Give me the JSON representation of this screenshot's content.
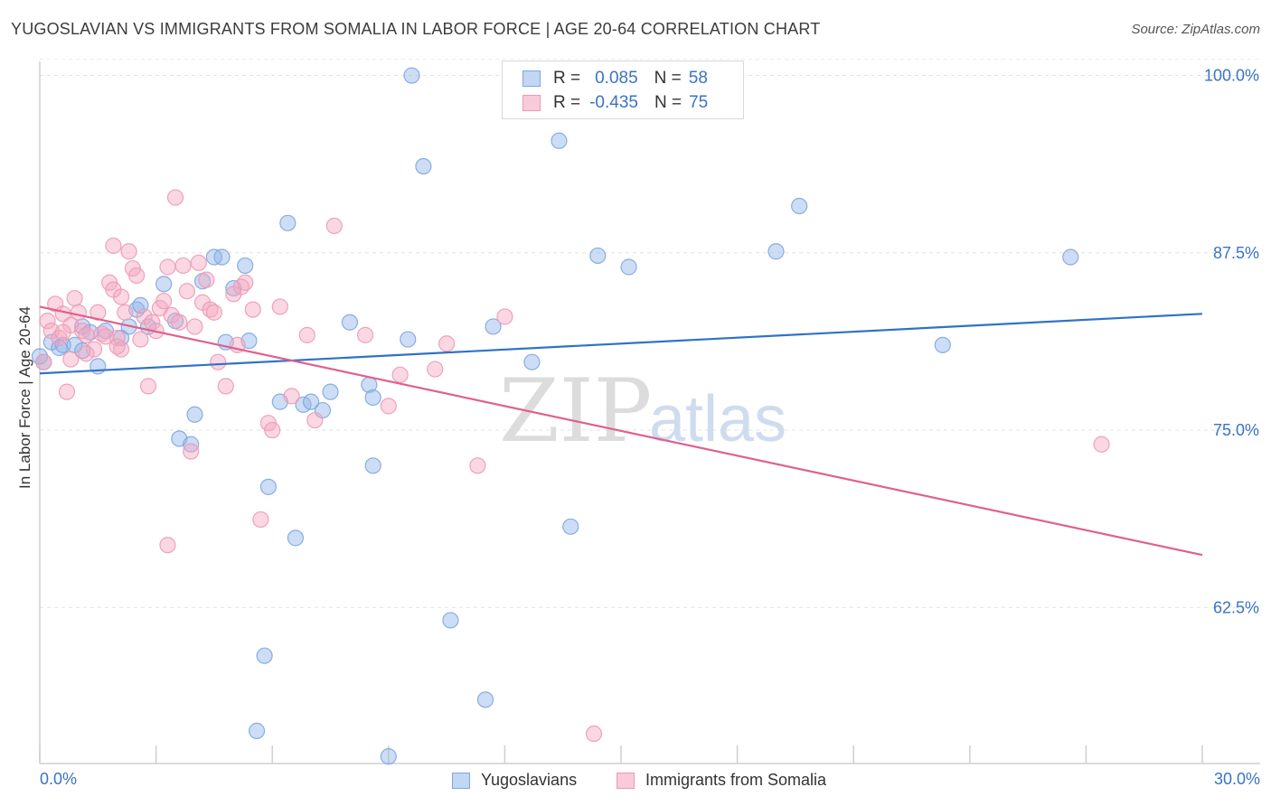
{
  "header": {
    "title": "YUGOSLAVIAN VS IMMIGRANTS FROM SOMALIA IN LABOR FORCE | AGE 20-64 CORRELATION CHART",
    "source": "Source: ZipAtlas.com"
  },
  "legend": {
    "rows": [
      {
        "r_label": "R =",
        "r_value": "0.085",
        "n_label": "N =",
        "n_value": "58"
      },
      {
        "r_label": "R =",
        "r_value": "-0.435",
        "n_label": "N =",
        "n_value": "75"
      }
    ]
  },
  "watermark": {
    "zip": "ZIP",
    "atlas": "atlas"
  },
  "chart_data": {
    "type": "scatter",
    "title": "YUGOSLAVIAN VS IMMIGRANTS FROM SOMALIA IN LABOR FORCE | AGE 20-64 CORRELATION CHART",
    "xlabel": "",
    "ylabel": "In Labor Force | Age 20-64",
    "xlim": [
      0,
      30
    ],
    "ylim": [
      51.5,
      101.5
    ],
    "x_tick_labels": [
      "0.0%",
      "30.0%"
    ],
    "y_ticks": [
      62.5,
      75.0,
      87.5,
      100.0
    ],
    "y_tick_labels": [
      "62.5%",
      "75.0%",
      "87.5%",
      "100.0%"
    ],
    "grid": true,
    "legend_position": "top-center",
    "series": [
      {
        "name": "Yugoslavians",
        "color": "#8fb4e8",
        "line_color": "#2f72c9",
        "trend": {
          "x": [
            0,
            30
          ],
          "y": [
            79.0,
            83.2
          ]
        },
        "points": [
          [
            0.1,
            79.8
          ],
          [
            0.3,
            81.2
          ],
          [
            0.5,
            80.8
          ],
          [
            0.6,
            81.0
          ],
          [
            0.9,
            81.0
          ],
          [
            1.1,
            82.3
          ],
          [
            1.1,
            80.6
          ],
          [
            1.5,
            79.5
          ],
          [
            1.7,
            82.0
          ],
          [
            2.1,
            81.5
          ],
          [
            2.3,
            82.3
          ],
          [
            2.5,
            83.5
          ],
          [
            2.6,
            83.8
          ],
          [
            2.8,
            82.3
          ],
          [
            3.2,
            85.3
          ],
          [
            3.5,
            82.7
          ],
          [
            3.6,
            74.4
          ],
          [
            3.9,
            74.0
          ],
          [
            4.0,
            76.1
          ],
          [
            4.2,
            85.5
          ],
          [
            4.5,
            87.2
          ],
          [
            4.7,
            87.2
          ],
          [
            4.8,
            81.2
          ],
          [
            5.0,
            85.0
          ],
          [
            5.3,
            86.6
          ],
          [
            5.4,
            81.3
          ],
          [
            5.6,
            53.8
          ],
          [
            5.8,
            59.1
          ],
          [
            5.9,
            71.0
          ],
          [
            6.2,
            77.0
          ],
          [
            6.4,
            89.6
          ],
          [
            6.6,
            67.4
          ],
          [
            6.8,
            76.8
          ],
          [
            7.0,
            77.0
          ],
          [
            7.3,
            76.4
          ],
          [
            7.5,
            77.7
          ],
          [
            8.0,
            82.6
          ],
          [
            8.5,
            78.2
          ],
          [
            8.6,
            77.3
          ],
          [
            8.6,
            72.5
          ],
          [
            9.0,
            52.0
          ],
          [
            9.5,
            81.4
          ],
          [
            9.6,
            100.0
          ],
          [
            9.9,
            93.6
          ],
          [
            10.6,
            61.6
          ],
          [
            11.5,
            56.0
          ],
          [
            11.7,
            82.3
          ],
          [
            12.7,
            79.8
          ],
          [
            13.4,
            95.4
          ],
          [
            13.7,
            68.2
          ],
          [
            14.4,
            87.3
          ],
          [
            15.2,
            86.5
          ],
          [
            19.0,
            87.6
          ],
          [
            19.6,
            90.8
          ],
          [
            23.3,
            81.0
          ],
          [
            26.6,
            87.2
          ],
          [
            0.0,
            80.2
          ],
          [
            1.3,
            81.9
          ]
        ]
      },
      {
        "name": "Immigrants from Somalia",
        "color": "#f4a6be",
        "line_color": "#e0608f",
        "trend": {
          "x": [
            0,
            30
          ],
          "y": [
            83.7,
            66.2
          ]
        },
        "points": [
          [
            0.1,
            79.8
          ],
          [
            0.2,
            82.7
          ],
          [
            0.3,
            82.0
          ],
          [
            0.4,
            83.9
          ],
          [
            0.5,
            81.5
          ],
          [
            0.6,
            83.2
          ],
          [
            0.7,
            77.7
          ],
          [
            0.8,
            82.4
          ],
          [
            0.8,
            80.0
          ],
          [
            0.9,
            84.3
          ],
          [
            1.0,
            83.3
          ],
          [
            1.1,
            82.0
          ],
          [
            1.2,
            81.7
          ],
          [
            1.4,
            80.7
          ],
          [
            1.5,
            83.3
          ],
          [
            1.6,
            81.8
          ],
          [
            1.7,
            81.6
          ],
          [
            1.8,
            85.4
          ],
          [
            1.9,
            84.9
          ],
          [
            1.9,
            88.0
          ],
          [
            2.0,
            81.5
          ],
          [
            2.1,
            80.7
          ],
          [
            2.1,
            84.4
          ],
          [
            2.2,
            83.3
          ],
          [
            2.3,
            87.6
          ],
          [
            2.4,
            86.4
          ],
          [
            2.5,
            85.9
          ],
          [
            2.6,
            81.4
          ],
          [
            2.7,
            83.0
          ],
          [
            2.8,
            78.1
          ],
          [
            2.9,
            82.6
          ],
          [
            3.0,
            82.0
          ],
          [
            3.1,
            83.6
          ],
          [
            3.2,
            84.1
          ],
          [
            3.3,
            66.9
          ],
          [
            3.3,
            86.5
          ],
          [
            3.4,
            83.1
          ],
          [
            3.5,
            91.4
          ],
          [
            3.6,
            82.6
          ],
          [
            3.7,
            86.6
          ],
          [
            3.8,
            84.8
          ],
          [
            3.9,
            73.5
          ],
          [
            4.0,
            82.3
          ],
          [
            4.1,
            86.8
          ],
          [
            4.2,
            84.0
          ],
          [
            4.3,
            85.6
          ],
          [
            4.4,
            83.5
          ],
          [
            4.5,
            83.3
          ],
          [
            4.6,
            79.8
          ],
          [
            4.8,
            78.1
          ],
          [
            5.0,
            84.6
          ],
          [
            5.1,
            81.0
          ],
          [
            5.2,
            85.1
          ],
          [
            5.3,
            85.4
          ],
          [
            5.5,
            83.5
          ],
          [
            5.7,
            68.7
          ],
          [
            5.9,
            75.5
          ],
          [
            6.0,
            75.0
          ],
          [
            6.2,
            83.7
          ],
          [
            6.5,
            77.4
          ],
          [
            6.9,
            81.7
          ],
          [
            7.1,
            75.7
          ],
          [
            7.6,
            89.4
          ],
          [
            8.4,
            81.7
          ],
          [
            9.0,
            76.7
          ],
          [
            9.3,
            78.9
          ],
          [
            10.2,
            79.3
          ],
          [
            10.5,
            81.1
          ],
          [
            11.3,
            72.5
          ],
          [
            12.0,
            83.0
          ],
          [
            14.3,
            53.6
          ],
          [
            27.4,
            74.0
          ],
          [
            0.6,
            81.9
          ],
          [
            1.2,
            80.4
          ],
          [
            2.0,
            80.9
          ]
        ]
      }
    ]
  }
}
